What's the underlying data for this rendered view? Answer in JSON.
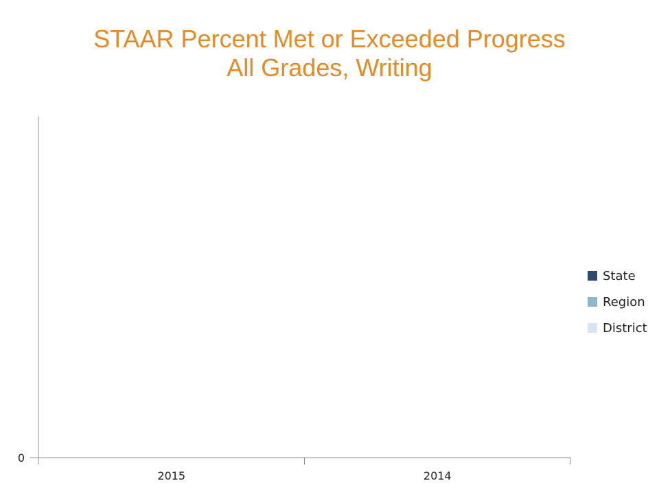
{
  "chart_data": {
    "type": "bar",
    "title": "STAAR Percent Met or Exceeded Progress",
    "subtitle": "All Grades, Writing",
    "title_color": "#E58A24",
    "categories": [
      "2015",
      "2014"
    ],
    "series": [
      {
        "name": "State",
        "color": "#2E4A6E",
        "values": [
          null,
          null
        ]
      },
      {
        "name": "Region",
        "color": "#8DB6CF",
        "values": [
          null,
          null
        ]
      },
      {
        "name": "District",
        "color": "#D5E6F2",
        "values": [
          null,
          null
        ]
      }
    ],
    "y_ticks": [
      "0"
    ],
    "xlabel": "",
    "ylabel": "",
    "ylim": [
      0,
      1
    ],
    "grid": false,
    "legend": "right"
  }
}
